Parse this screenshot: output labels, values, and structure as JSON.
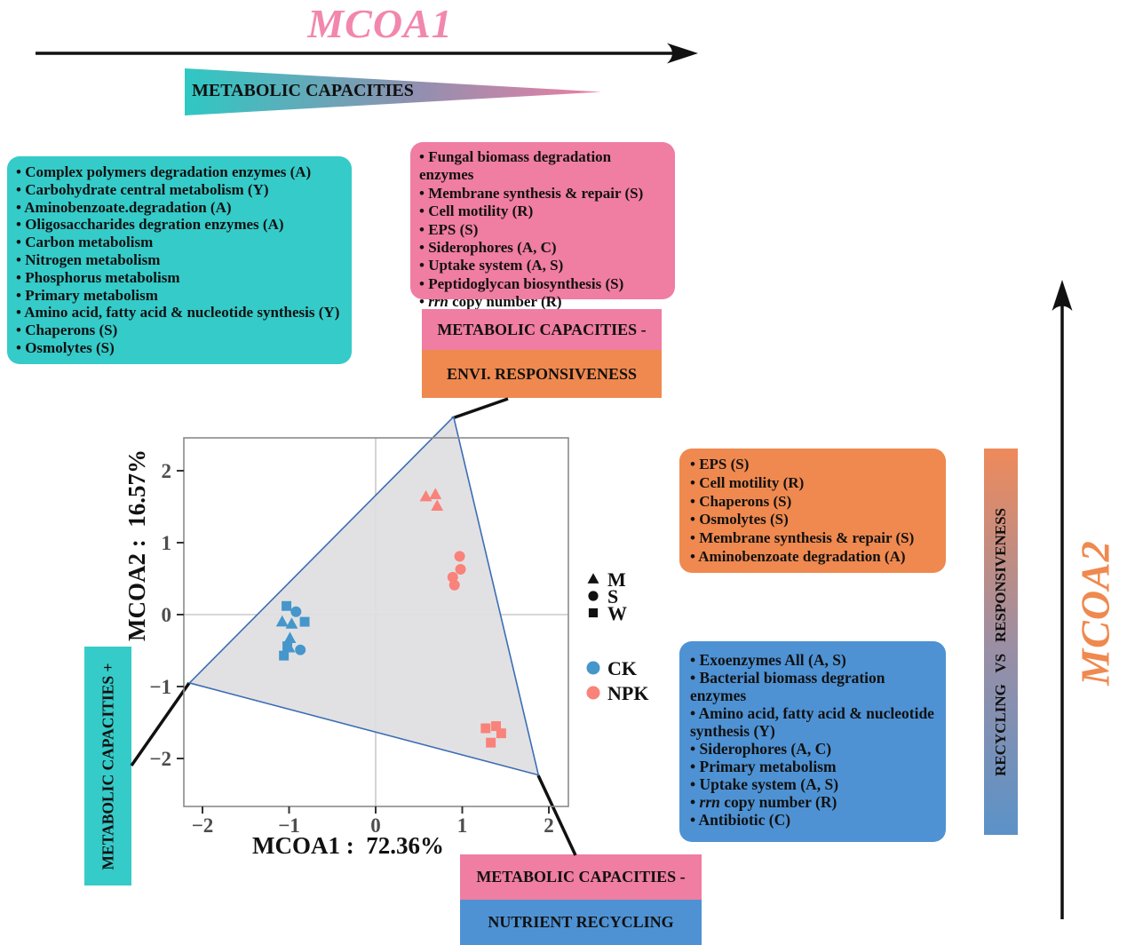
{
  "figure": {
    "mcoa1_title": "MCOA1",
    "mcoa2_title": "MCOA2",
    "mcoa1_title_color": "#F287AE",
    "mcoa2_title_color": "#EF894F"
  },
  "gradient_triangle": {
    "label": "METABOLIC CAPACITIES",
    "from_color": "#2FC8C3",
    "to_color": "#EC7EA2"
  },
  "gradient_bar": {
    "label": "RECYCLING   VS   RESPONSIVENESS",
    "top_color": "#EE8A5B",
    "bottom_color": "#5B92C8"
  },
  "callouts": {
    "left_vertical": "METABOLIC CAPACITIES +",
    "mid_pink": "METABOLIC CAPACITIES -",
    "mid_orange": "ENVI. RESPONSIVENESS",
    "bottom_pink": "METABOLIC CAPACITIES -",
    "bottom_blue": "NUTRIENT RECYCLING"
  },
  "boxes": {
    "teal": {
      "color": "#35CBC9",
      "items": [
        "Complex polymers degradation enzymes (A)",
        "Carbohydrate central metabolism (Y)",
        "Aminobenzoate.degradation (A)",
        "Oligosaccharides degration enzymes (A)",
        "Carbon metabolism",
        "Nitrogen metabolism",
        "Phosphorus metabolism",
        "Primary metabolism",
        "Amino acid, fatty acid & nucleotide synthesis (Y)",
        "Chaperons (S)",
        "Osmolytes (S)"
      ]
    },
    "pink": {
      "color": "#F07DA2",
      "items": [
        "Fungal biomass degradation enzymes",
        "Membrane synthesis & repair (S)",
        "Cell motility (R)",
        "EPS (S)",
        "Siderophores (A, C)",
        "Uptake system (A, S)",
        "Peptidoglycan biosynthesis (S)",
        "*rrn* copy number (R)"
      ]
    },
    "orange": {
      "color": "#EF894F",
      "items": [
        "EPS (S)",
        "Cell motility (R)",
        "Chaperons (S)",
        "Osmolytes (S)",
        "Membrane synthesis & repair (S)",
        "Aminobenzoate degradation (A)"
      ]
    },
    "blue": {
      "color": "#4E92D4",
      "items": [
        "Exoenzymes All (A, S)",
        "Bacterial biomass degration enzymes",
        "Amino acid, fatty acid & nucleotide synthesis (Y)",
        "Siderophores (A, C)",
        "Primary metabolism",
        "Uptake system (A, S)",
        "*rrn* copy number (R)",
        "Antibiotic (C)"
      ]
    }
  },
  "chart_data": {
    "type": "scatter",
    "title": "",
    "xlabel": "MCOA1 :  72.36%",
    "ylabel": "MCOA2 :  16.57%",
    "xlim": [
      -2.22,
      2.23
    ],
    "ylim": [
      -2.67,
      2.46
    ],
    "xticks": [
      -2,
      -1,
      0,
      1,
      2
    ],
    "yticks": [
      -2,
      -1,
      0,
      1,
      2
    ],
    "grid": "zero lines only",
    "legend_position": "right of panel, inside figure",
    "hull_fill": "#DEDEE1",
    "hull_color": "#3C6DB4",
    "hull": [
      [
        0.9,
        2.75
      ],
      [
        -2.15,
        -0.95
      ],
      [
        1.88,
        -2.23
      ]
    ],
    "shape_legend": [
      {
        "marker": "triangle",
        "label": "M"
      },
      {
        "marker": "circle",
        "label": "S"
      },
      {
        "marker": "square",
        "label": "W"
      }
    ],
    "color_legend": [
      {
        "color": "#4596CB",
        "label": "CK"
      },
      {
        "color": "#F9827A",
        "label": "NPK"
      }
    ],
    "series": [
      {
        "name": "CK",
        "color": "#4596CB",
        "points": [
          [
            -1.08,
            -0.1,
            "triangle"
          ],
          [
            -0.97,
            -0.13,
            "triangle"
          ],
          [
            -0.99,
            -0.33,
            "triangle"
          ],
          [
            -1.0,
            -0.46,
            "triangle"
          ],
          [
            -0.92,
            0.04,
            "circle"
          ],
          [
            -0.87,
            -0.49,
            "circle"
          ],
          [
            -1.03,
            0.12,
            "square"
          ],
          [
            -0.82,
            -0.1,
            "square"
          ],
          [
            -1.02,
            -0.44,
            "square"
          ],
          [
            -1.06,
            -0.57,
            "square"
          ]
        ]
      },
      {
        "name": "NPK",
        "color": "#F9827A",
        "points": [
          [
            0.58,
            1.64,
            "triangle"
          ],
          [
            0.69,
            1.67,
            "triangle"
          ],
          [
            0.71,
            1.51,
            "triangle"
          ],
          [
            0.97,
            0.81,
            "circle"
          ],
          [
            0.98,
            0.63,
            "circle"
          ],
          [
            0.89,
            0.52,
            "circle"
          ],
          [
            0.91,
            0.41,
            "circle"
          ],
          [
            1.27,
            -1.58,
            "square"
          ],
          [
            1.39,
            -1.55,
            "square"
          ],
          [
            1.45,
            -1.65,
            "square"
          ],
          [
            1.33,
            -1.78,
            "square"
          ]
        ]
      }
    ]
  }
}
